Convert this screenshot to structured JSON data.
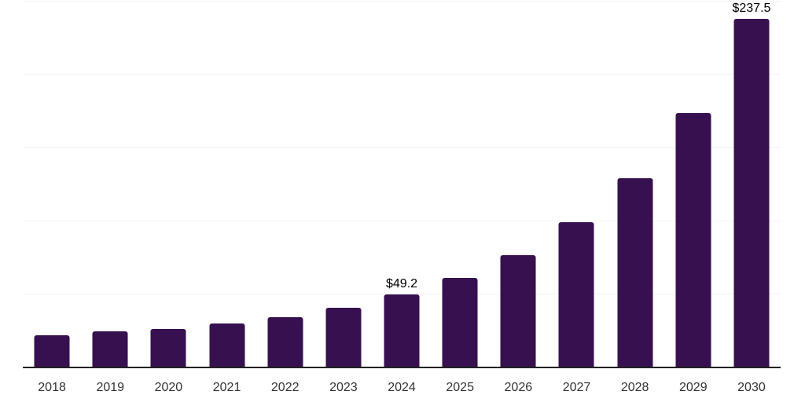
{
  "chart_data": {
    "type": "bar",
    "title": "",
    "xlabel": "",
    "ylabel": "",
    "categories": [
      "2018",
      "2019",
      "2020",
      "2021",
      "2022",
      "2023",
      "2024",
      "2025",
      "2026",
      "2027",
      "2028",
      "2029",
      "2030"
    ],
    "values": [
      21.5,
      24.0,
      25.7,
      29.4,
      33.6,
      40.1,
      49.2,
      60.4,
      76.4,
      98.8,
      128.9,
      173.3,
      237.5
    ],
    "data_labels": {
      "2024": "$49.2",
      "2030": "$237.5"
    },
    "ylim": [
      0,
      250
    ],
    "gridline_step": 50,
    "grid": true,
    "legend": false,
    "colors": {
      "bar": "#371050",
      "axis_line": "#222222",
      "gridline": "#f2f2f2",
      "tick_label": "#333333",
      "value_label": "#000000",
      "background": "#ffffff"
    }
  }
}
